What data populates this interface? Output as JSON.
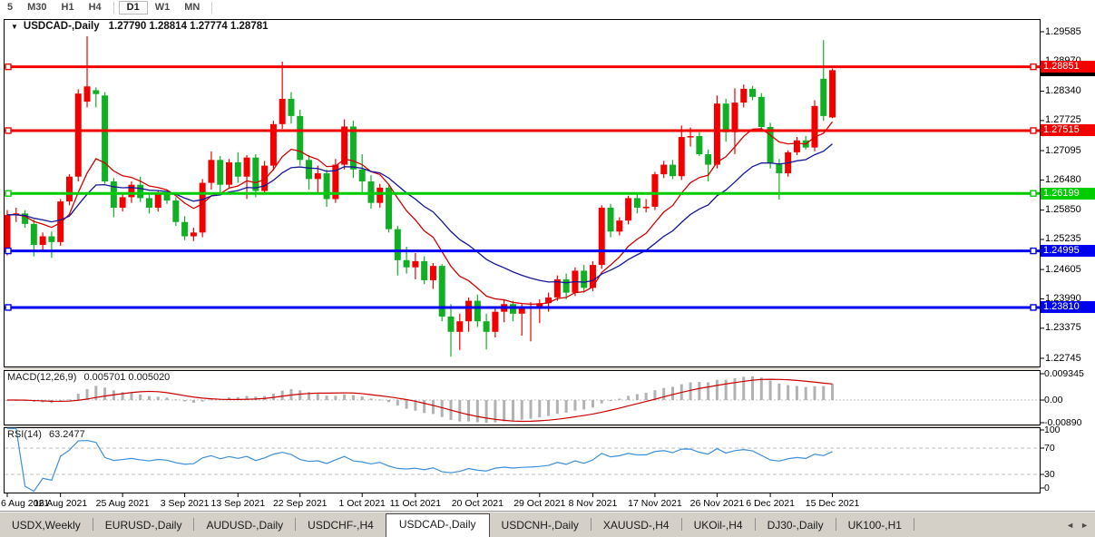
{
  "toolbar": {
    "timeframes": [
      "5",
      "M30",
      "H1",
      "H4",
      "D1",
      "W1",
      "MN"
    ],
    "active": "D1"
  },
  "chart": {
    "title": "USDCAD-,Daily",
    "ohlc": "1.27790 1.28814 1.27774 1.28781",
    "dropdown_icon": "▼"
  },
  "chart_data": {
    "type": "candlestick",
    "symbol": "USDCAD-",
    "period": "Daily",
    "current_bar": {
      "open": "1.27790",
      "high": "1.28814",
      "low": "1.27774",
      "close": "1.28781"
    },
    "current_price_label": "1.28781",
    "price_axis_ticks": [
      "1.29585",
      "1.28970",
      "1.28340",
      "1.27725",
      "1.27095",
      "1.26480",
      "1.25850",
      "1.25235",
      "1.24605",
      "1.23990",
      "1.23375",
      "1.22745"
    ],
    "hlines": [
      {
        "price": 1.28851,
        "label": "1.28851",
        "color": "#f40000"
      },
      {
        "price": 1.27515,
        "label": "1.27515",
        "color": "#f40000"
      },
      {
        "price": 1.26199,
        "label": "1.26199",
        "color": "#00cc00"
      },
      {
        "price": 1.24995,
        "label": "1.24995",
        "color": "#0000f2"
      },
      {
        "price": 1.2381,
        "label": "1.23810",
        "color": "#0000f2"
      }
    ],
    "candles": [
      [
        1.25,
        1.2585,
        1.249,
        1.2575
      ],
      [
        1.2575,
        1.259,
        1.256,
        1.2578
      ],
      [
        1.2578,
        1.2585,
        1.2548,
        1.2556
      ],
      [
        1.2556,
        1.2565,
        1.2488,
        1.2512
      ],
      [
        1.2512,
        1.2538,
        1.25,
        1.253
      ],
      [
        1.253,
        1.254,
        1.2485,
        1.2518
      ],
      [
        1.2518,
        1.2608,
        1.251,
        1.2603
      ],
      [
        1.2603,
        1.266,
        1.2595,
        1.2655
      ],
      [
        1.2655,
        1.2838,
        1.2645,
        1.2829
      ],
      [
        1.2812,
        1.2949,
        1.28,
        1.2844
      ],
      [
        1.2836,
        1.2842,
        1.28,
        1.2828
      ],
      [
        1.2825,
        1.2832,
        1.264,
        1.2645
      ],
      [
        1.2645,
        1.2652,
        1.257,
        1.259
      ],
      [
        1.259,
        1.2618,
        1.2582,
        1.2612
      ],
      [
        1.2612,
        1.2645,
        1.26,
        1.2638
      ],
      [
        1.2638,
        1.2655,
        1.2602,
        1.261
      ],
      [
        1.261,
        1.2622,
        1.2578,
        1.259
      ],
      [
        1.259,
        1.2625,
        1.2582,
        1.2618
      ],
      [
        1.2618,
        1.2628,
        1.2598,
        1.2605
      ],
      [
        1.2605,
        1.2612,
        1.2552,
        1.256
      ],
      [
        1.256,
        1.2572,
        1.2522,
        1.253
      ],
      [
        1.253,
        1.2548,
        1.252,
        1.2538
      ],
      [
        1.2538,
        1.265,
        1.2528,
        1.2642
      ],
      [
        1.2642,
        1.2708,
        1.2628,
        1.269
      ],
      [
        1.269,
        1.2698,
        1.2622,
        1.2638
      ],
      [
        1.2638,
        1.2692,
        1.263,
        1.2685
      ],
      [
        1.2685,
        1.2706,
        1.2642,
        1.2655
      ],
      [
        1.2655,
        1.27,
        1.2608,
        1.2695
      ],
      [
        1.2695,
        1.2702,
        1.2612,
        1.2625
      ],
      [
        1.2625,
        1.2688,
        1.2618,
        1.2678
      ],
      [
        1.2678,
        1.2772,
        1.2668,
        1.2765
      ],
      [
        1.2765,
        1.2896,
        1.2755,
        1.2818
      ],
      [
        1.2818,
        1.2832,
        1.2766,
        1.2782
      ],
      [
        1.2782,
        1.2795,
        1.2678,
        1.269
      ],
      [
        1.269,
        1.27,
        1.2628,
        1.265
      ],
      [
        1.265,
        1.2678,
        1.2618,
        1.2662
      ],
      [
        1.2662,
        1.267,
        1.2592,
        1.2608
      ],
      [
        1.2608,
        1.2692,
        1.26,
        1.268
      ],
      [
        1.268,
        1.2775,
        1.267,
        1.276
      ],
      [
        1.276,
        1.2772,
        1.2652,
        1.267
      ],
      [
        1.267,
        1.2702,
        1.2622,
        1.2645
      ],
      [
        1.2645,
        1.2658,
        1.2588,
        1.26
      ],
      [
        1.26,
        1.264,
        1.259,
        1.2632
      ],
      [
        1.2632,
        1.264,
        1.2538,
        1.2545
      ],
      [
        1.2545,
        1.2552,
        1.2448,
        1.248
      ],
      [
        1.248,
        1.2508,
        1.2452,
        1.2465
      ],
      [
        1.2465,
        1.2495,
        1.244,
        1.2478
      ],
      [
        1.2478,
        1.2488,
        1.243,
        1.2438
      ],
      [
        1.2438,
        1.2474,
        1.242,
        1.2468
      ],
      [
        1.2468,
        1.2472,
        1.2352,
        1.2362
      ],
      [
        1.2362,
        1.2388,
        1.2278,
        1.233
      ],
      [
        1.233,
        1.2368,
        1.2292,
        1.2352
      ],
      [
        1.2352,
        1.2402,
        1.233,
        1.2395
      ],
      [
        1.2395,
        1.2408,
        1.234,
        1.2352
      ],
      [
        1.2352,
        1.2368,
        1.2293,
        1.233
      ],
      [
        1.233,
        1.2382,
        1.2318,
        1.2372
      ],
      [
        1.2372,
        1.2398,
        1.235,
        1.2388
      ],
      [
        1.2388,
        1.2395,
        1.2352,
        1.2368
      ],
      [
        1.2368,
        1.2388,
        1.2322,
        1.2378
      ],
      [
        1.2378,
        1.2392,
        1.231,
        1.2382
      ],
      [
        1.2382,
        1.2398,
        1.2348,
        1.239
      ],
      [
        1.239,
        1.2412,
        1.2372,
        1.2402
      ],
      [
        1.2402,
        1.2448,
        1.2395,
        1.244
      ],
      [
        1.244,
        1.2452,
        1.2398,
        1.2412
      ],
      [
        1.2412,
        1.2465,
        1.2405,
        1.2458
      ],
      [
        1.2458,
        1.247,
        1.2412,
        1.2422
      ],
      [
        1.2422,
        1.2478,
        1.2415,
        1.247
      ],
      [
        1.247,
        1.2595,
        1.2462,
        1.259
      ],
      [
        1.259,
        1.2598,
        1.2528,
        1.254
      ],
      [
        1.254,
        1.257,
        1.2532,
        1.2563
      ],
      [
        1.2563,
        1.2615,
        1.2555,
        1.261
      ],
      [
        1.261,
        1.2622,
        1.2578,
        1.259
      ],
      [
        1.259,
        1.2608,
        1.258,
        1.2592
      ],
      [
        1.2592,
        1.2665,
        1.2585,
        1.266
      ],
      [
        1.266,
        1.2688,
        1.2652,
        1.268
      ],
      [
        1.268,
        1.269,
        1.265,
        1.2656
      ],
      [
        1.2656,
        1.2762,
        1.2648,
        1.2738
      ],
      [
        1.2738,
        1.2758,
        1.2718,
        1.274
      ],
      [
        1.274,
        1.2748,
        1.2698,
        1.2702
      ],
      [
        1.2702,
        1.2712,
        1.2645,
        1.268
      ],
      [
        1.268,
        1.2825,
        1.2672,
        1.2808
      ],
      [
        1.2808,
        1.2818,
        1.2728,
        1.2748
      ],
      [
        1.2748,
        1.284,
        1.2702,
        1.281
      ],
      [
        1.281,
        1.2848,
        1.28,
        1.2839
      ],
      [
        1.2839,
        1.2845,
        1.2815,
        1.2822
      ],
      [
        1.2822,
        1.283,
        1.2752,
        1.2759
      ],
      [
        1.2759,
        1.2768,
        1.2672,
        1.2683
      ],
      [
        1.2683,
        1.2692,
        1.2607,
        1.2662
      ],
      [
        1.2662,
        1.271,
        1.2655,
        1.2706
      ],
      [
        1.2706,
        1.2738,
        1.27,
        1.2731
      ],
      [
        1.2731,
        1.274,
        1.2712,
        1.2716
      ],
      [
        1.2716,
        1.2815,
        1.2708,
        1.2803
      ],
      [
        1.286,
        1.2941,
        1.2772,
        1.2782
      ],
      [
        1.2779,
        1.28814,
        1.27774,
        1.28781
      ]
    ],
    "date_labels": [
      {
        "text": "6 Aug 2021",
        "bar": 0
      },
      {
        "text": "16 Aug 2021",
        "bar": 6
      },
      {
        "text": "25 Aug 2021",
        "bar": 13
      },
      {
        "text": "3 Sep 2021",
        "bar": 20
      },
      {
        "text": "13 Sep 2021",
        "bar": 26
      },
      {
        "text": "22 Sep 2021",
        "bar": 33
      },
      {
        "text": "1 Oct 2021",
        "bar": 40
      },
      {
        "text": "11 Oct 2021",
        "bar": 46
      },
      {
        "text": "20 Oct 2021",
        "bar": 53
      },
      {
        "text": "29 Oct 2021",
        "bar": 60
      },
      {
        "text": "8 Nov 2021",
        "bar": 66
      },
      {
        "text": "17 Nov 2021",
        "bar": 73
      },
      {
        "text": "26 Nov 2021",
        "bar": 80
      },
      {
        "text": "6 Dec 2021",
        "bar": 86
      },
      {
        "text": "15 Dec 2021",
        "bar": 93
      }
    ],
    "indicators": {
      "macd": {
        "name": "MACD(12,26,9)",
        "values": "0.005701 0.005020",
        "axis_ticks": [
          "0.009345",
          "0.00",
          "-0.00890"
        ]
      },
      "rsi": {
        "name": "RSI(14)",
        "value": "63.2477",
        "axis_ticks": [
          "100",
          "70",
          "30",
          "0"
        ],
        "levels": [
          70,
          30
        ]
      }
    },
    "colors": {
      "bull": "#f20000",
      "bear": "#11b024",
      "ma_fast": "#d10000",
      "ma_slow": "#151599",
      "macd_hist": "#b2b2b2",
      "macd_signal": "#c80000",
      "rsi_line": "#3d8fd8",
      "level_dash": "#c0c0c0",
      "current_price_bg": "#000000"
    }
  },
  "tabbar": {
    "tabs": [
      "USDX,Weekly",
      "EURUSD-,Daily",
      "AUDUSD-,Daily",
      "USDCHF-,H4",
      "USDCAD-,Daily",
      "USDCNH-,Daily",
      "XAUUSD-,H4",
      "UKOil-,H4",
      "DJ30-,Daily",
      "UK100-,H1"
    ],
    "active": "USDCAD-,Daily",
    "scroll_left_icon": "◄",
    "scroll_right_icon": "►"
  }
}
